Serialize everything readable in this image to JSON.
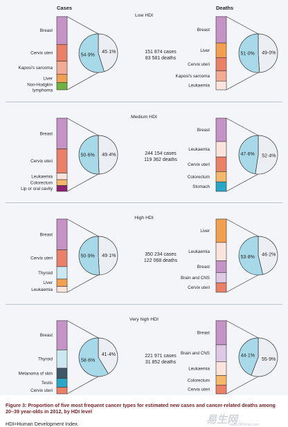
{
  "headers": {
    "cases": "Cases",
    "deaths": "Deaths"
  },
  "colors": {
    "panel_bg": "#f3f5f8",
    "pie_cases": "#a8d9e8",
    "pie_deaths": "#ebeef2",
    "pie_stroke": "#333333",
    "bar_stroke": "#333333",
    "Breast": "#c593c5",
    "Cervix uteri": "#eb8068",
    "Kaposi's sarcoma": "#f4ab93",
    "Liver": "#f2a050",
    "Non-Hodgkin lymphoma": "#6db342",
    "Leukaemia": "#fbe4dc",
    "Colorectum": "#f6b86a",
    "Lip or oral cavity": "#8a2470",
    "Thyroid": "#cbe8f1",
    "Melanoma of skin": "#3d5968",
    "Testis": "#2aa7c6",
    "Stomach": "#2aa7c6",
    "Brain and CNS": "#ddc8e6"
  },
  "chart_data": [
    {
      "type": "pie",
      "title": "Low HDI",
      "cases_label": "151 874 cases",
      "deaths_label": "83 581 deaths",
      "cases_bar": [
        {
          "name": "Breast",
          "share": 0.38
        },
        {
          "name": "Cervix uteri",
          "share": 0.23
        },
        {
          "name": "Kaposi's sarcoma",
          "share": 0.18
        },
        {
          "name": "Liver",
          "share": 0.11
        },
        {
          "name": "Non-Hodgkin lymphoma",
          "share": 0.1
        }
      ],
      "cases_pie": [
        {
          "label": "54·9%",
          "value": 54.9,
          "role": "cases"
        },
        {
          "label": "45·1%",
          "value": 45.1,
          "role": "deaths"
        }
      ],
      "deaths_bar": [
        {
          "name": "Breast",
          "share": 0.36
        },
        {
          "name": "Liver",
          "share": 0.2
        },
        {
          "name": "Cervix uteri",
          "share": 0.18
        },
        {
          "name": "Kaposi's sarcoma",
          "share": 0.14
        },
        {
          "name": "Leukaemia",
          "share": 0.12
        }
      ],
      "deaths_pie": [
        {
          "label": "51·0%",
          "value": 51.0,
          "role": "cases"
        },
        {
          "label": "49·0%",
          "value": 49.0,
          "role": "deaths"
        }
      ]
    },
    {
      "type": "pie",
      "title": "Medium HDI",
      "cases_label": "244 154 cases",
      "deaths_label": "119 362 deaths",
      "cases_bar": [
        {
          "name": "Breast",
          "share": 0.42
        },
        {
          "name": "Cervix uteri",
          "share": 0.33
        },
        {
          "name": "Leukaemia",
          "share": 0.09
        },
        {
          "name": "Colorectum",
          "share": 0.08
        },
        {
          "name": "Lip or oral cavity",
          "share": 0.08
        }
      ],
      "cases_pie": [
        {
          "label": "50·6%",
          "value": 50.6,
          "role": "cases"
        },
        {
          "label": "49·4%",
          "value": 49.4,
          "role": "deaths"
        }
      ],
      "deaths_bar": [
        {
          "name": "Breast",
          "share": 0.32
        },
        {
          "name": "Leukaemia",
          "share": 0.21
        },
        {
          "name": "Cervix uteri",
          "share": 0.2
        },
        {
          "name": "Colorectum",
          "share": 0.14
        },
        {
          "name": "Stomach",
          "share": 0.13
        }
      ],
      "deaths_pie": [
        {
          "label": "47·6%",
          "value": 47.6,
          "role": "cases"
        },
        {
          "label": "52·4%",
          "value": 52.4,
          "role": "deaths"
        }
      ]
    },
    {
      "type": "pie",
      "title": "High HDI",
      "cases_label": "350 234 cases",
      "deaths_label": "122 068 deaths",
      "cases_bar": [
        {
          "name": "Breast",
          "share": 0.42
        },
        {
          "name": "Cervix uteri",
          "share": 0.23
        },
        {
          "name": "Thyroid",
          "share": 0.17
        },
        {
          "name": "Liver",
          "share": 0.1
        },
        {
          "name": "Leukaemia",
          "share": 0.08
        }
      ],
      "cases_pie": [
        {
          "label": "50·9%",
          "value": 50.9,
          "role": "cases"
        },
        {
          "label": "49·1%",
          "value": 49.1,
          "role": "deaths"
        }
      ],
      "deaths_bar": [
        {
          "name": "Liver",
          "share": 0.32
        },
        {
          "name": "Leukaemia",
          "share": 0.25
        },
        {
          "name": "Breast",
          "share": 0.16
        },
        {
          "name": "Brain and CNS",
          "share": 0.14
        },
        {
          "name": "Cervix uteri",
          "share": 0.13
        }
      ],
      "deaths_pie": [
        {
          "label": "53·8%",
          "value": 53.8,
          "role": "cases"
        },
        {
          "label": "46·2%",
          "value": 46.2,
          "role": "deaths"
        }
      ]
    },
    {
      "type": "pie",
      "title": "Very high HDI",
      "cases_label": "221 971 cases",
      "deaths_label": "31 852 deaths",
      "cases_bar": [
        {
          "name": "Breast",
          "share": 0.4
        },
        {
          "name": "Thyroid",
          "share": 0.25
        },
        {
          "name": "Melanoma of skin",
          "share": 0.14
        },
        {
          "name": "Testis",
          "share": 0.12
        },
        {
          "name": "Cervix uteri",
          "share": 0.09
        }
      ],
      "cases_pie": [
        {
          "label": "58·6%",
          "value": 58.6,
          "role": "cases"
        },
        {
          "label": "41·4%",
          "value": 41.4,
          "role": "deaths"
        }
      ],
      "deaths_bar": [
        {
          "name": "Breast",
          "share": 0.33
        },
        {
          "name": "Brain and CNS",
          "share": 0.23
        },
        {
          "name": "Leukaemia",
          "share": 0.19
        },
        {
          "name": "Colorectum",
          "share": 0.13
        },
        {
          "name": "Cervix uteri",
          "share": 0.12
        }
      ],
      "deaths_pie": [
        {
          "label": "44·1%",
          "value": 44.1,
          "role": "cases"
        },
        {
          "label": "55·9%",
          "value": 55.9,
          "role": "deaths"
        }
      ]
    }
  ],
  "caption": {
    "figure_label": "Figure 3:",
    "title": "Proportion of five most frequent cancer types for estimated new cases and cancer-related deaths among 20–39 year-olds in 2012, by HDI level",
    "abbreviation": "HDI=Human Development Index."
  },
  "watermark": {
    "text": "易生网",
    "url": "www.360zhsp.com"
  }
}
